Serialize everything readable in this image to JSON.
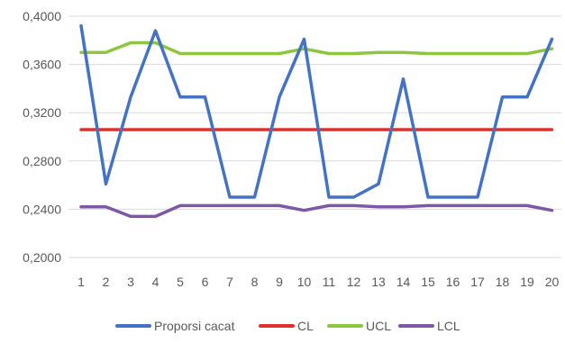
{
  "chart_data": {
    "type": "line",
    "title": "",
    "xlabel": "",
    "ylabel": "",
    "categories": [
      "1",
      "2",
      "3",
      "4",
      "5",
      "6",
      "7",
      "8",
      "9",
      "10",
      "11",
      "12",
      "13",
      "14",
      "15",
      "16",
      "17",
      "18",
      "19",
      "20"
    ],
    "ylim": [
      0.2,
      0.4
    ],
    "yticks": [
      "0,2000",
      "0,2400",
      "0,2800",
      "0,3200",
      "0,3600",
      "0,4000"
    ],
    "ytick_values": [
      0.2,
      0.24,
      0.28,
      0.32,
      0.36,
      0.4
    ],
    "grid": true,
    "legend_position": "bottom",
    "series": [
      {
        "name": "Proporsi cacat",
        "color": "#4472C4",
        "values": [
          0.392,
          0.261,
          0.333,
          0.388,
          0.333,
          0.333,
          0.25,
          0.25,
          0.333,
          0.381,
          0.25,
          0.25,
          0.261,
          0.348,
          0.25,
          0.25,
          0.25,
          0.333,
          0.333,
          0.381
        ]
      },
      {
        "name": "CL",
        "color": "#E0302B",
        "values": [
          0.306,
          0.306,
          0.306,
          0.306,
          0.306,
          0.306,
          0.306,
          0.306,
          0.306,
          0.306,
          0.306,
          0.306,
          0.306,
          0.306,
          0.306,
          0.306,
          0.306,
          0.306,
          0.306,
          0.306
        ]
      },
      {
        "name": "UCL",
        "color": "#8DC63F",
        "values": [
          0.37,
          0.37,
          0.378,
          0.378,
          0.369,
          0.369,
          0.369,
          0.369,
          0.369,
          0.373,
          0.369,
          0.369,
          0.37,
          0.37,
          0.369,
          0.369,
          0.369,
          0.369,
          0.369,
          0.373
        ]
      },
      {
        "name": "LCL",
        "color": "#7E57A7",
        "values": [
          0.242,
          0.242,
          0.234,
          0.234,
          0.243,
          0.243,
          0.243,
          0.243,
          0.243,
          0.239,
          0.243,
          0.243,
          0.242,
          0.242,
          0.243,
          0.243,
          0.243,
          0.243,
          0.243,
          0.239
        ]
      }
    ]
  }
}
